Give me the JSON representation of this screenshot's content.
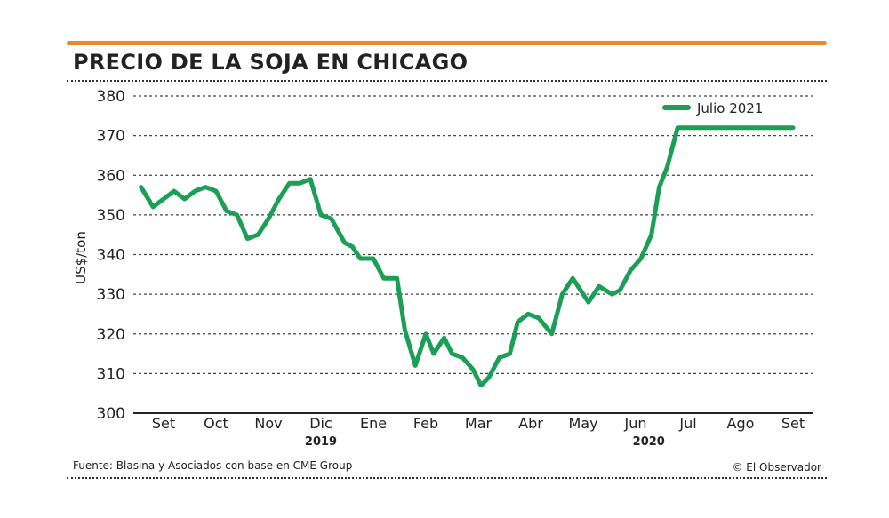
{
  "header": {
    "title": "PRECIO DE LA SOJA EN CHICAGO"
  },
  "footer": {
    "source": "Fuente: Blasina y Asociados con base en CME Group",
    "credit": "© El Observador"
  },
  "colors": {
    "accent_rule": "#e8892b",
    "series": "#1b9e55",
    "grid": "#444444"
  },
  "chart_data": {
    "type": "line",
    "title": "PRECIO DE LA SOJA EN CHICAGO",
    "ylabel": "US$/ton",
    "xlabel": "",
    "ylim": [
      300,
      380
    ],
    "yticks": [
      300,
      310,
      320,
      330,
      340,
      350,
      360,
      370,
      380
    ],
    "grid": true,
    "legend_position": "top-right",
    "x_categories": [
      "Set",
      "Oct",
      "Nov",
      "Dic",
      "Ene",
      "Feb",
      "Mar",
      "Abr",
      "May",
      "Jun",
      "Jul",
      "Ago",
      "Set"
    ],
    "year_labels": [
      {
        "label": "2019",
        "month_index": 3
      },
      {
        "label": "2020",
        "month_index": 9.25
      }
    ],
    "series": [
      {
        "name": "Julio 2021",
        "x": [
          -0.43,
          -0.2,
          0,
          0.2,
          0.4,
          0.6,
          0.8,
          1.0,
          1.2,
          1.4,
          1.6,
          1.8,
          2.0,
          2.2,
          2.4,
          2.6,
          2.8,
          3.0,
          3.2,
          3.45,
          3.6,
          3.75,
          4.0,
          4.2,
          4.45,
          4.6,
          4.8,
          5.0,
          5.15,
          5.35,
          5.5,
          5.7,
          5.9,
          6.05,
          6.2,
          6.4,
          6.6,
          6.75,
          6.95,
          7.15,
          7.4,
          7.6,
          7.8,
          8.1,
          8.3,
          8.55,
          8.7,
          8.9,
          9.1,
          9.3,
          9.45,
          9.6,
          9.8,
          10.0,
          10.2,
          10.4,
          10.6,
          10.8,
          11.0,
          11.15,
          11.4,
          11.6,
          11.8,
          12.0,
          12.1,
          12.25
        ],
        "values": [
          357,
          352,
          354,
          356,
          354,
          356,
          357,
          356,
          351,
          350,
          344,
          345,
          349,
          354,
          358,
          358,
          359,
          350,
          349,
          343,
          342,
          339,
          339,
          334,
          334,
          321,
          312,
          320,
          315,
          319,
          315,
          314,
          311,
          307,
          309,
          314,
          315,
          323,
          325,
          324,
          320,
          330,
          334,
          328,
          332,
          330,
          331,
          336,
          339,
          345,
          357,
          362,
          372,
          372,
          372,
          372,
          372,
          372,
          372,
          372,
          372,
          372,
          372,
          372,
          372,
          372
        ]
      }
    ]
  }
}
